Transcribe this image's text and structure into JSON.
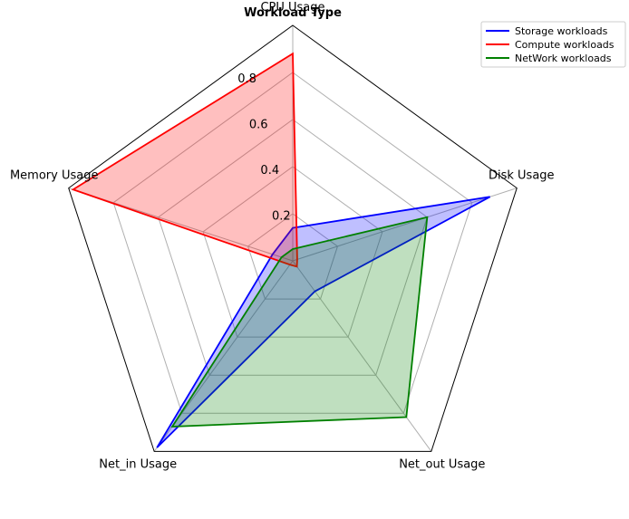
{
  "chart_data": {
    "type": "radar",
    "title": "Workload Type",
    "axes": [
      "CPU Usage",
      "Disk Usage",
      "Net_out Usage",
      "Net_in Usage",
      "Memory Usage"
    ],
    "rmax": 1.0,
    "rticks": [
      0.2,
      0.4,
      0.6,
      0.8
    ],
    "rtick_labels": [
      "0.2",
      "0.4",
      "0.6",
      "0.8"
    ],
    "grid": true,
    "legend_position": "top-right",
    "series": [
      {
        "name": "Storage workloads",
        "color": "#0000ff",
        "values": [
          0.14,
          0.88,
          0.16,
          0.98,
          0.09
        ],
        "fill_opacity": 0.25
      },
      {
        "name": "Compute workloads",
        "color": "#ff0000",
        "values": [
          0.88,
          0.02,
          0.03,
          0.02,
          0.98
        ],
        "fill_opacity": 0.25
      },
      {
        "name": "NetWork workloads",
        "color": "#008000",
        "values": [
          0.05,
          0.6,
          0.82,
          0.87,
          0.05
        ],
        "fill_opacity": 0.25
      }
    ]
  }
}
